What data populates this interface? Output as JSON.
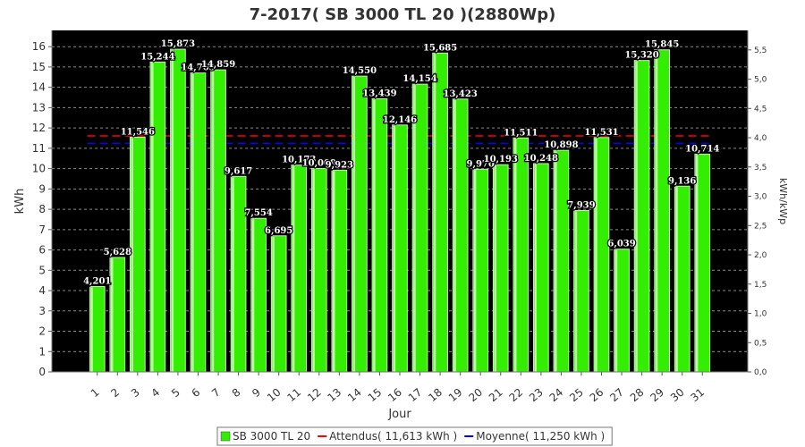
{
  "chart_data": {
    "type": "bar",
    "title": "7-2017( SB 3000 TL 20 )(2880Wp)",
    "xlabel": "Jour",
    "ylabel": "kWh",
    "y2label": "kWh/kWp",
    "ylim": [
      0,
      16.8
    ],
    "y2lim": [
      0,
      5.833
    ],
    "yticks": [
      0,
      1,
      2,
      3,
      4,
      5,
      6,
      7,
      8,
      9,
      10,
      11,
      12,
      13,
      14,
      15,
      16
    ],
    "y2ticks": [
      "0,0",
      "0,5",
      "1,0",
      "1,5",
      "2,0",
      "2,5",
      "3,0",
      "3,5",
      "4,0",
      "4,5",
      "5,0",
      "5,5"
    ],
    "categories": [
      "1",
      "2",
      "3",
      "4",
      "5",
      "6",
      "7",
      "8",
      "9",
      "10",
      "11",
      "12",
      "13",
      "14",
      "15",
      "16",
      "17",
      "18",
      "19",
      "20",
      "21",
      "22",
      "23",
      "24",
      "25",
      "26",
      "27",
      "28",
      "29",
      "30",
      "31"
    ],
    "values": [
      4.201,
      5.628,
      11.546,
      15.244,
      15.873,
      14.705,
      14.859,
      9.617,
      7.554,
      6.695,
      10.173,
      10.009,
      9.923,
      14.55,
      13.439,
      12.146,
      14.154,
      15.685,
      13.423,
      9.97,
      10.193,
      11.511,
      10.248,
      10.898,
      7.939,
      11.531,
      6.039,
      15.32,
      15.845,
      9.136,
      10.714
    ],
    "value_labels": [
      "4,201",
      "5,628",
      "11,546",
      "15,244",
      "15,873",
      "14,705",
      "14,859",
      "9,617",
      "7,554",
      "6,695",
      "10,173",
      "10,009",
      "9,923",
      "14,550",
      "13,439",
      "12,146",
      "14,154",
      "15,685",
      "13,423",
      "9,970",
      "10,193",
      "11,511",
      "10,248",
      "10,898",
      "7,939",
      "11,531",
      "6,039",
      "15,320",
      "15,845",
      "9,136",
      "10,714"
    ],
    "reference_lines": [
      {
        "name": "Attendus( 11,613 kWh )",
        "value": 11.613,
        "color": "#ff0000"
      },
      {
        "name": "Moyenne( 11,250 kWh )",
        "value": 11.25,
        "color": "#0000ff"
      }
    ],
    "legend": [
      {
        "label": "SB 3000 TL 20",
        "color": "#33ee00",
        "kind": "box"
      },
      {
        "label": "Attendus( 11,613 kWh )",
        "color": "#ff0000",
        "kind": "line"
      },
      {
        "label": "Moyenne( 11,250 kWh )",
        "color": "#0000ff",
        "kind": "line"
      }
    ],
    "legend_position": "bottom-center",
    "grid": true,
    "colors": {
      "bar": "#33ee00",
      "plot_bg": "#000000",
      "grid": "#8a8a8a"
    }
  }
}
